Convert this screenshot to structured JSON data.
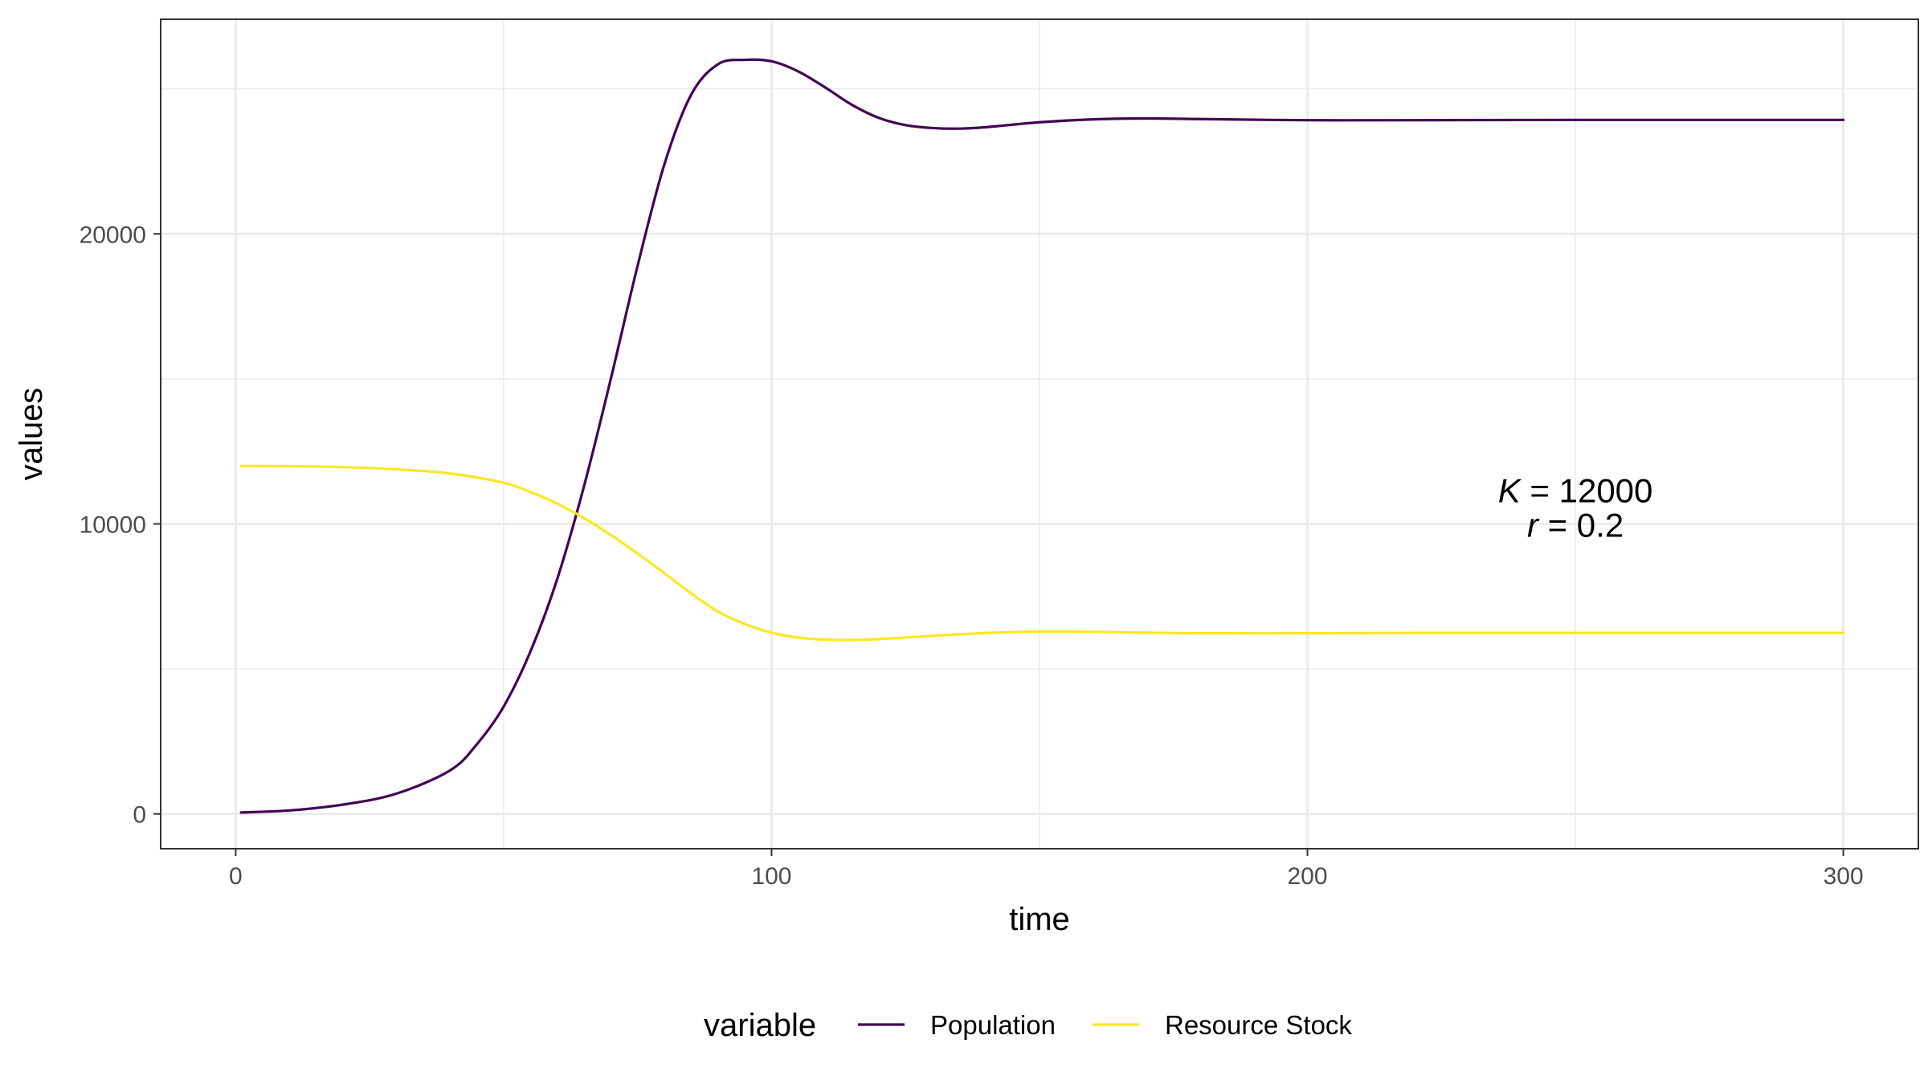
{
  "chart_data": {
    "type": "line",
    "xlabel": "time",
    "ylabel": "values",
    "xlim": [
      -14,
      314
    ],
    "ylim": [
      -1200,
      27400
    ],
    "x_ticks": [
      0,
      100,
      200,
      300
    ],
    "x_minor": [
      50,
      150,
      250
    ],
    "y_ticks": [
      0,
      10000,
      20000
    ],
    "y_minor": [
      5000,
      15000,
      25000
    ],
    "grid": true,
    "legend": {
      "title": "variable",
      "position": "bottom"
    },
    "series": [
      {
        "name": "Population",
        "color": "#440154",
        "x": [
          1,
          10,
          20,
          30,
          40,
          45,
          50,
          55,
          60,
          65,
          70,
          75,
          80,
          85,
          90,
          95,
          100,
          105,
          110,
          115,
          120,
          125,
          130,
          135,
          140,
          150,
          160,
          170,
          180,
          200,
          220,
          250,
          280,
          300
        ],
        "y": [
          50,
          120,
          320,
          700,
          1500,
          2400,
          3700,
          5600,
          8100,
          11300,
          15000,
          18900,
          22400,
          24800,
          25850,
          26000,
          25950,
          25600,
          25050,
          24450,
          24000,
          23750,
          23650,
          23630,
          23680,
          23850,
          23950,
          23980,
          23960,
          23920,
          23920,
          23930,
          23930,
          23930
        ]
      },
      {
        "name": "Resource Stock",
        "color": "#FDE725",
        "x": [
          1,
          10,
          20,
          30,
          40,
          50,
          55,
          60,
          65,
          70,
          75,
          80,
          85,
          90,
          95,
          100,
          105,
          110,
          115,
          120,
          130,
          140,
          150,
          160,
          170,
          180,
          200,
          220,
          250,
          280,
          300
        ],
        "y": [
          12000,
          11990,
          11960,
          11880,
          11740,
          11420,
          11100,
          10700,
          10200,
          9620,
          8980,
          8300,
          7600,
          6980,
          6550,
          6250,
          6080,
          6010,
          6000,
          6030,
          6140,
          6240,
          6290,
          6280,
          6250,
          6230,
          6230,
          6240,
          6240,
          6240,
          6240
        ]
      }
    ],
    "annotations": [
      {
        "var": "K",
        "text": " = 12000",
        "x": 250,
        "y": 10750
      },
      {
        "var": "r",
        "text": " = 0.2",
        "x": 250,
        "y": 9550
      }
    ]
  }
}
